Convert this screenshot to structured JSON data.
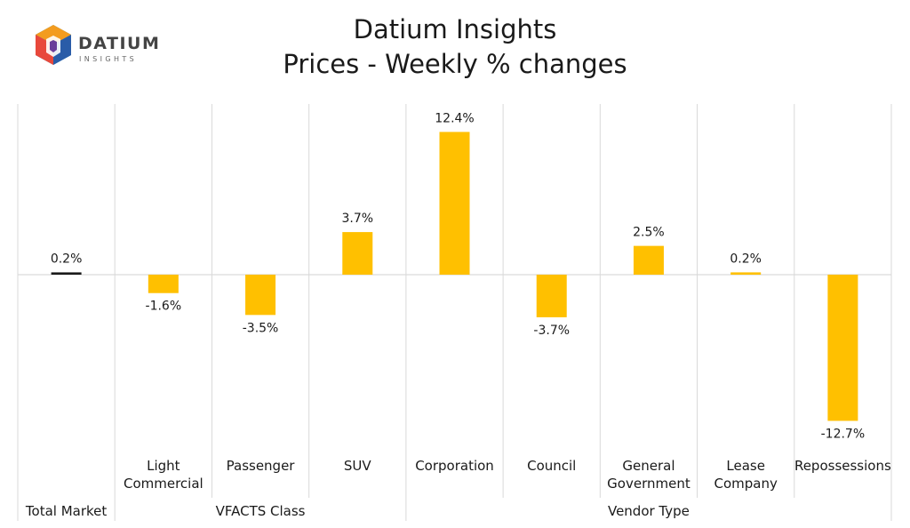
{
  "title_line1": "Datium Insights",
  "title_line2": "Prices - Weekly % changes",
  "logo": {
    "word": "DATIUM",
    "sub": "INSIGHTS"
  },
  "colors": {
    "highlight_bar": "#1a1a1a",
    "bar": "#FFC000",
    "grid": "#d9d9d9"
  },
  "chart_data": {
    "type": "bar",
    "title": "Prices - Weekly % changes",
    "ylabel": "",
    "xlabel": "",
    "ylim": [
      -15,
      15
    ],
    "categories": [
      {
        "label_lines": [
          "",
          ""
        ],
        "group": "Total Market",
        "value": 0.2,
        "display": "0.2%"
      },
      {
        "label_lines": [
          "Light",
          "Commercial"
        ],
        "group": "VFACTS Class",
        "value": -1.6,
        "display": "-1.6%"
      },
      {
        "label_lines": [
          "Passenger",
          ""
        ],
        "group": "VFACTS Class",
        "value": -3.5,
        "display": "-3.5%"
      },
      {
        "label_lines": [
          "SUV",
          ""
        ],
        "group": "VFACTS Class",
        "value": 3.7,
        "display": "3.7%"
      },
      {
        "label_lines": [
          "Corporation",
          ""
        ],
        "group": "Vendor Type",
        "value": 12.4,
        "display": "12.4%"
      },
      {
        "label_lines": [
          "Council",
          ""
        ],
        "group": "Vendor Type",
        "value": -3.7,
        "display": "-3.7%"
      },
      {
        "label_lines": [
          "General",
          "Government"
        ],
        "group": "Vendor Type",
        "value": 2.5,
        "display": "2.5%"
      },
      {
        "label_lines": [
          "Lease",
          "Company"
        ],
        "group": "Vendor Type",
        "value": 0.2,
        "display": "0.2%"
      },
      {
        "label_lines": [
          "Repossessions",
          ""
        ],
        "group": "Vendor Type",
        "value": -12.7,
        "display": "-12.7%"
      }
    ],
    "groups": [
      "Total Market",
      "VFACTS Class",
      "Vendor Type"
    ],
    "grid": true,
    "legend": "none"
  }
}
